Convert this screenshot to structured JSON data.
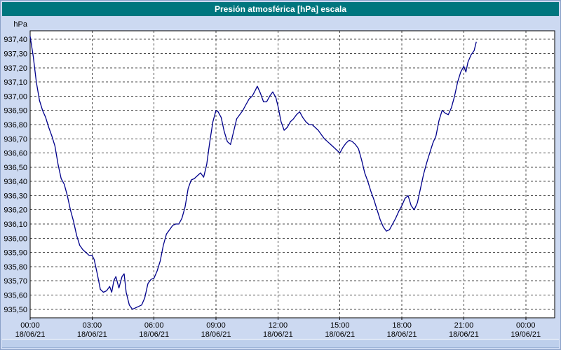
{
  "title_bar": {
    "title": "Presión atmosférica [hPa] escala"
  },
  "colors": {
    "title_bar_bg": "#00767E",
    "title_text": "#FFFFFF",
    "window_bg": "#CCD9F1",
    "plot_bg": "#FFFFFF",
    "grid": "#4A4A4A",
    "axis": "#000000",
    "line": "#00008B",
    "scrollbar": "#BDCFEC"
  },
  "chart_data": {
    "type": "line",
    "title": "Presión atmosférica [hPa] escala",
    "ylabel_unit": "hPa",
    "grid": "dashed",
    "legend": "none",
    "ylim": [
      935.44,
      937.46
    ],
    "xlim_hours": [
      0,
      25.4
    ],
    "y_ticks": [
      937.4,
      937.3,
      937.2,
      937.1,
      937.0,
      936.9,
      936.8,
      936.7,
      936.6,
      936.5,
      936.4,
      936.3,
      936.2,
      936.1,
      936.0,
      935.9,
      935.8,
      935.7,
      935.6,
      935.5
    ],
    "y_tick_labels": [
      "937,40",
      "937,30",
      "937,20",
      "937,10",
      "937,00",
      "936,90",
      "936,80",
      "936,70",
      "936,60",
      "936,50",
      "936,40",
      "936,30",
      "936,20",
      "936,10",
      "936,00",
      "935,90",
      "935,80",
      "935,70",
      "935,60",
      "935,50"
    ],
    "x_ticks_hours": [
      0,
      3,
      6,
      9,
      12,
      15,
      18,
      21,
      24
    ],
    "x_tick_labels": [
      "00:00",
      "03:00",
      "06:00",
      "09:00",
      "12:00",
      "15:00",
      "18:00",
      "21:00",
      "00:00"
    ],
    "x_tick_dates": [
      "18/06/21",
      "18/06/21",
      "18/06/21",
      "18/06/21",
      "18/06/21",
      "18/06/21",
      "18/06/21",
      "18/06/21",
      "19/06/21"
    ],
    "series": [
      {
        "name": "Presión atmosférica",
        "color": "#00008B",
        "points": [
          [
            0,
            937.42
          ],
          [
            0.15,
            937.28
          ],
          [
            0.3,
            937.1
          ],
          [
            0.45,
            936.97
          ],
          [
            0.6,
            936.9
          ],
          [
            0.75,
            936.85
          ],
          [
            0.9,
            936.78
          ],
          [
            1.05,
            936.72
          ],
          [
            1.2,
            936.65
          ],
          [
            1.35,
            936.52
          ],
          [
            1.5,
            936.42
          ],
          [
            1.65,
            936.38
          ],
          [
            1.8,
            936.3
          ],
          [
            1.95,
            936.2
          ],
          [
            2.1,
            936.12
          ],
          [
            2.25,
            936.02
          ],
          [
            2.4,
            935.95
          ],
          [
            2.55,
            935.92
          ],
          [
            2.7,
            935.9
          ],
          [
            2.85,
            935.88
          ],
          [
            3,
            935.88
          ],
          [
            3.1,
            935.85
          ],
          [
            3.25,
            935.75
          ],
          [
            3.4,
            935.64
          ],
          [
            3.55,
            935.62
          ],
          [
            3.7,
            935.63
          ],
          [
            3.85,
            935.66
          ],
          [
            3.95,
            935.62
          ],
          [
            4.05,
            935.7
          ],
          [
            4.15,
            935.73
          ],
          [
            4.3,
            935.65
          ],
          [
            4.45,
            935.73
          ],
          [
            4.55,
            935.75
          ],
          [
            4.65,
            935.62
          ],
          [
            4.8,
            935.53
          ],
          [
            4.95,
            935.5
          ],
          [
            5.1,
            935.51
          ],
          [
            5.25,
            935.52
          ],
          [
            5.4,
            935.53
          ],
          [
            5.55,
            935.58
          ],
          [
            5.7,
            935.68
          ],
          [
            5.85,
            935.71
          ],
          [
            6,
            935.72
          ],
          [
            6.15,
            935.77
          ],
          [
            6.3,
            935.84
          ],
          [
            6.45,
            935.95
          ],
          [
            6.6,
            936.03
          ],
          [
            6.75,
            936.06
          ],
          [
            6.9,
            936.09
          ],
          [
            7.05,
            936.1
          ],
          [
            7.2,
            936.1
          ],
          [
            7.35,
            936.14
          ],
          [
            7.5,
            936.22
          ],
          [
            7.65,
            936.35
          ],
          [
            7.8,
            936.41
          ],
          [
            7.95,
            936.42
          ],
          [
            8.1,
            936.44
          ],
          [
            8.25,
            936.46
          ],
          [
            8.4,
            936.43
          ],
          [
            8.55,
            936.52
          ],
          [
            8.7,
            936.68
          ],
          [
            8.85,
            936.82
          ],
          [
            9,
            936.9
          ],
          [
            9.1,
            936.89
          ],
          [
            9.25,
            936.85
          ],
          [
            9.4,
            936.75
          ],
          [
            9.55,
            936.68
          ],
          [
            9.7,
            936.66
          ],
          [
            9.85,
            936.75
          ],
          [
            10,
            936.84
          ],
          [
            10.15,
            936.87
          ],
          [
            10.3,
            936.9
          ],
          [
            10.45,
            936.94
          ],
          [
            10.6,
            936.98
          ],
          [
            10.75,
            937.0
          ],
          [
            10.9,
            937.04
          ],
          [
            11,
            937.07
          ],
          [
            11.15,
            937.02
          ],
          [
            11.3,
            936.96
          ],
          [
            11.45,
            936.96
          ],
          [
            11.6,
            937.0
          ],
          [
            11.75,
            937.03
          ],
          [
            11.9,
            936.99
          ],
          [
            12,
            936.93
          ],
          [
            12.15,
            936.82
          ],
          [
            12.3,
            936.76
          ],
          [
            12.45,
            936.78
          ],
          [
            12.6,
            936.82
          ],
          [
            12.75,
            936.84
          ],
          [
            12.9,
            936.87
          ],
          [
            13.05,
            936.89
          ],
          [
            13.2,
            936.85
          ],
          [
            13.35,
            936.82
          ],
          [
            13.5,
            936.8
          ],
          [
            13.65,
            936.8
          ],
          [
            13.8,
            936.78
          ],
          [
            13.95,
            936.76
          ],
          [
            14.1,
            936.73
          ],
          [
            14.25,
            936.7
          ],
          [
            14.4,
            936.68
          ],
          [
            14.55,
            936.66
          ],
          [
            14.7,
            936.64
          ],
          [
            14.85,
            936.62
          ],
          [
            15,
            936.6
          ],
          [
            15.15,
            936.64
          ],
          [
            15.3,
            936.67
          ],
          [
            15.45,
            936.69
          ],
          [
            15.6,
            936.68
          ],
          [
            15.75,
            936.66
          ],
          [
            15.9,
            936.63
          ],
          [
            16.05,
            936.55
          ],
          [
            16.2,
            936.46
          ],
          [
            16.35,
            936.4
          ],
          [
            16.5,
            936.33
          ],
          [
            16.65,
            936.27
          ],
          [
            16.8,
            936.2
          ],
          [
            16.95,
            936.13
          ],
          [
            17.1,
            936.08
          ],
          [
            17.25,
            936.05
          ],
          [
            17.4,
            936.06
          ],
          [
            17.55,
            936.1
          ],
          [
            17.7,
            936.14
          ],
          [
            17.85,
            936.19
          ],
          [
            18,
            936.23
          ],
          [
            18.15,
            936.28
          ],
          [
            18.3,
            936.3
          ],
          [
            18.45,
            936.23
          ],
          [
            18.6,
            936.2
          ],
          [
            18.75,
            936.25
          ],
          [
            18.9,
            936.35
          ],
          [
            19.05,
            936.45
          ],
          [
            19.2,
            936.53
          ],
          [
            19.35,
            936.6
          ],
          [
            19.5,
            936.67
          ],
          [
            19.65,
            936.72
          ],
          [
            19.8,
            936.83
          ],
          [
            19.95,
            936.9
          ],
          [
            20.1,
            936.88
          ],
          [
            20.25,
            936.87
          ],
          [
            20.4,
            936.92
          ],
          [
            20.55,
            937.0
          ],
          [
            20.7,
            937.1
          ],
          [
            20.85,
            937.17
          ],
          [
            21,
            937.21
          ],
          [
            21.1,
            937.17
          ],
          [
            21.2,
            937.24
          ],
          [
            21.35,
            937.29
          ],
          [
            21.5,
            937.32
          ],
          [
            21.6,
            937.38
          ]
        ]
      }
    ]
  }
}
